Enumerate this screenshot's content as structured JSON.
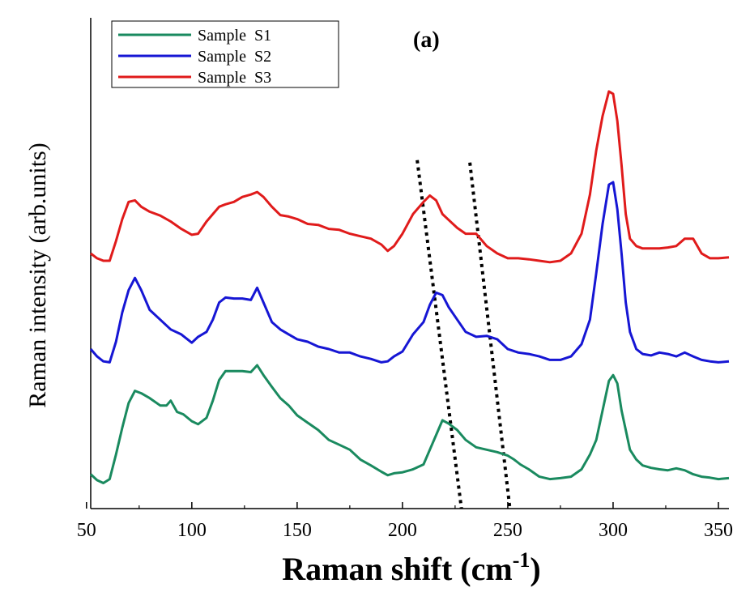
{
  "chart_data": {
    "type": "line",
    "title": "",
    "panel_label": "(a)",
    "xlabel": "Raman shift (cm",
    "xlabel_sup": "-1",
    "xlabel_close": ")",
    "ylabel": "Raman intensity (arb.units)",
    "xlim": [
      52,
      355
    ],
    "ylim": [
      0,
      1
    ],
    "xticks": [
      50,
      100,
      150,
      200,
      250,
      300,
      350
    ],
    "yticks_shown": false,
    "grid": false,
    "legend_position": "top-left",
    "series": [
      {
        "name": "Sample  S1",
        "color": "#1a8a5f",
        "x": [
          52,
          55,
          58,
          61,
          64,
          67,
          70,
          73,
          76,
          80,
          85,
          88,
          90,
          93,
          96,
          100,
          103,
          107,
          110,
          113,
          116,
          120,
          124,
          128,
          131,
          134,
          138,
          142,
          146,
          150,
          155,
          160,
          165,
          170,
          175,
          180,
          185,
          190,
          193,
          196,
          200,
          205,
          210,
          213,
          216,
          219,
          222,
          226,
          230,
          235,
          240,
          245,
          250,
          253,
          256,
          260,
          265,
          270,
          275,
          280,
          285,
          289,
          292,
          295,
          298,
          300,
          302,
          304,
          306,
          308,
          311,
          314,
          318,
          322,
          326,
          330,
          334,
          338,
          342,
          346,
          350,
          355
        ],
        "y": [
          0.07,
          0.058,
          0.052,
          0.06,
          0.11,
          0.165,
          0.215,
          0.24,
          0.235,
          0.225,
          0.21,
          0.21,
          0.22,
          0.197,
          0.192,
          0.178,
          0.172,
          0.185,
          0.22,
          0.262,
          0.28,
          0.28,
          0.28,
          0.278,
          0.292,
          0.272,
          0.248,
          0.225,
          0.21,
          0.19,
          0.175,
          0.16,
          0.14,
          0.13,
          0.12,
          0.1,
          0.088,
          0.075,
          0.068,
          0.072,
          0.074,
          0.08,
          0.09,
          0.12,
          0.15,
          0.18,
          0.173,
          0.16,
          0.14,
          0.125,
          0.12,
          0.115,
          0.108,
          0.1,
          0.09,
          0.08,
          0.065,
          0.06,
          0.062,
          0.065,
          0.08,
          0.11,
          0.14,
          0.2,
          0.26,
          0.272,
          0.255,
          0.2,
          0.16,
          0.12,
          0.1,
          0.088,
          0.083,
          0.08,
          0.078,
          0.082,
          0.078,
          0.07,
          0.065,
          0.063,
          0.06,
          0.062
        ]
      },
      {
        "name": "Sample  S2",
        "color": "#1616d4",
        "x": [
          52,
          55,
          58,
          61,
          64,
          67,
          70,
          73,
          76,
          80,
          85,
          90,
          95,
          100,
          103,
          107,
          110,
          113,
          116,
          120,
          124,
          128,
          131,
          134,
          138,
          142,
          146,
          150,
          155,
          160,
          165,
          170,
          175,
          180,
          185,
          190,
          193,
          196,
          200,
          205,
          210,
          213,
          216,
          219,
          222,
          226,
          230,
          235,
          240,
          245,
          250,
          255,
          260,
          265,
          270,
          275,
          280,
          285,
          289,
          292,
          295,
          298,
          300,
          302,
          304,
          306,
          308,
          311,
          314,
          318,
          322,
          326,
          330,
          334,
          338,
          342,
          346,
          350,
          355
        ],
        "y": [
          0.325,
          0.31,
          0.3,
          0.298,
          0.34,
          0.4,
          0.445,
          0.47,
          0.445,
          0.405,
          0.385,
          0.365,
          0.355,
          0.338,
          0.35,
          0.36,
          0.385,
          0.42,
          0.43,
          0.428,
          0.428,
          0.425,
          0.45,
          0.42,
          0.38,
          0.365,
          0.355,
          0.345,
          0.34,
          0.33,
          0.325,
          0.318,
          0.318,
          0.31,
          0.305,
          0.298,
          0.3,
          0.31,
          0.32,
          0.355,
          0.38,
          0.415,
          0.44,
          0.435,
          0.41,
          0.385,
          0.36,
          0.35,
          0.352,
          0.345,
          0.325,
          0.318,
          0.315,
          0.31,
          0.303,
          0.303,
          0.31,
          0.335,
          0.385,
          0.48,
          0.58,
          0.66,
          0.665,
          0.61,
          0.52,
          0.42,
          0.36,
          0.325,
          0.315,
          0.312,
          0.318,
          0.315,
          0.31,
          0.318,
          0.31,
          0.303,
          0.3,
          0.298,
          0.3
        ]
      },
      {
        "name": "Sample  S3",
        "color": "#e01b1b",
        "x": [
          52,
          55,
          58,
          61,
          64,
          67,
          70,
          73,
          76,
          80,
          85,
          90,
          95,
          100,
          103,
          107,
          110,
          113,
          116,
          120,
          124,
          128,
          131,
          134,
          138,
          142,
          146,
          150,
          155,
          160,
          165,
          170,
          175,
          180,
          185,
          190,
          193,
          196,
          200,
          205,
          210,
          213,
          216,
          219,
          222,
          226,
          230,
          235,
          240,
          245,
          250,
          255,
          260,
          265,
          270,
          275,
          280,
          285,
          289,
          292,
          295,
          298,
          300,
          302,
          304,
          306,
          308,
          311,
          314,
          318,
          322,
          326,
          330,
          334,
          338,
          342,
          346,
          350,
          355
        ],
        "y": [
          0.52,
          0.51,
          0.505,
          0.505,
          0.545,
          0.59,
          0.625,
          0.628,
          0.615,
          0.605,
          0.597,
          0.585,
          0.57,
          0.558,
          0.56,
          0.585,
          0.6,
          0.615,
          0.62,
          0.625,
          0.635,
          0.64,
          0.645,
          0.635,
          0.615,
          0.598,
          0.595,
          0.59,
          0.58,
          0.578,
          0.57,
          0.568,
          0.56,
          0.555,
          0.55,
          0.538,
          0.525,
          0.535,
          0.56,
          0.6,
          0.625,
          0.638,
          0.628,
          0.6,
          0.588,
          0.572,
          0.56,
          0.56,
          0.535,
          0.52,
          0.51,
          0.51,
          0.508,
          0.505,
          0.502,
          0.505,
          0.52,
          0.56,
          0.64,
          0.73,
          0.8,
          0.85,
          0.845,
          0.79,
          0.7,
          0.6,
          0.55,
          0.535,
          0.53,
          0.53,
          0.53,
          0.532,
          0.535,
          0.55,
          0.55,
          0.52,
          0.51,
          0.51,
          0.512
        ]
      }
    ],
    "guide_lines": [
      {
        "x1": 207,
        "y1": 0.71,
        "x2": 228,
        "y2": 0.0
      },
      {
        "x1": 232,
        "y1": 0.705,
        "x2": 251,
        "y2": 0.0
      }
    ]
  }
}
